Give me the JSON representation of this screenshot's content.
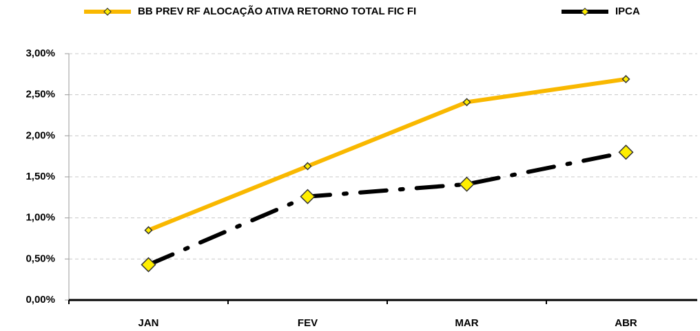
{
  "chart_data": {
    "type": "line",
    "categories": [
      "JAN",
      "FEV",
      "MAR",
      "ABR"
    ],
    "series": [
      {
        "name": "BB PREV RF ALOCAÇÃO ATIVA RETORNO TOTAL FIC FI",
        "color": "#f9b800",
        "line_style": "solid",
        "values": [
          0.85,
          1.63,
          2.41,
          2.69
        ]
      },
      {
        "name": "IPCA",
        "color": "#000000",
        "line_style": "dash-dot",
        "values": [
          0.43,
          1.26,
          1.41,
          1.8
        ]
      }
    ],
    "ylim": [
      0,
      3
    ],
    "yticks": [
      {
        "value": 0,
        "label": "0,00%"
      },
      {
        "value": 0.5,
        "label": "0,50%"
      },
      {
        "value": 1,
        "label": "1,00%"
      },
      {
        "value": 1.5,
        "label": "1,50%"
      },
      {
        "value": 2,
        "label": "2,00%"
      },
      {
        "value": 2.5,
        "label": "2,50%"
      },
      {
        "value": 3,
        "label": "3,00%"
      }
    ],
    "grid": true,
    "legend": "top"
  }
}
